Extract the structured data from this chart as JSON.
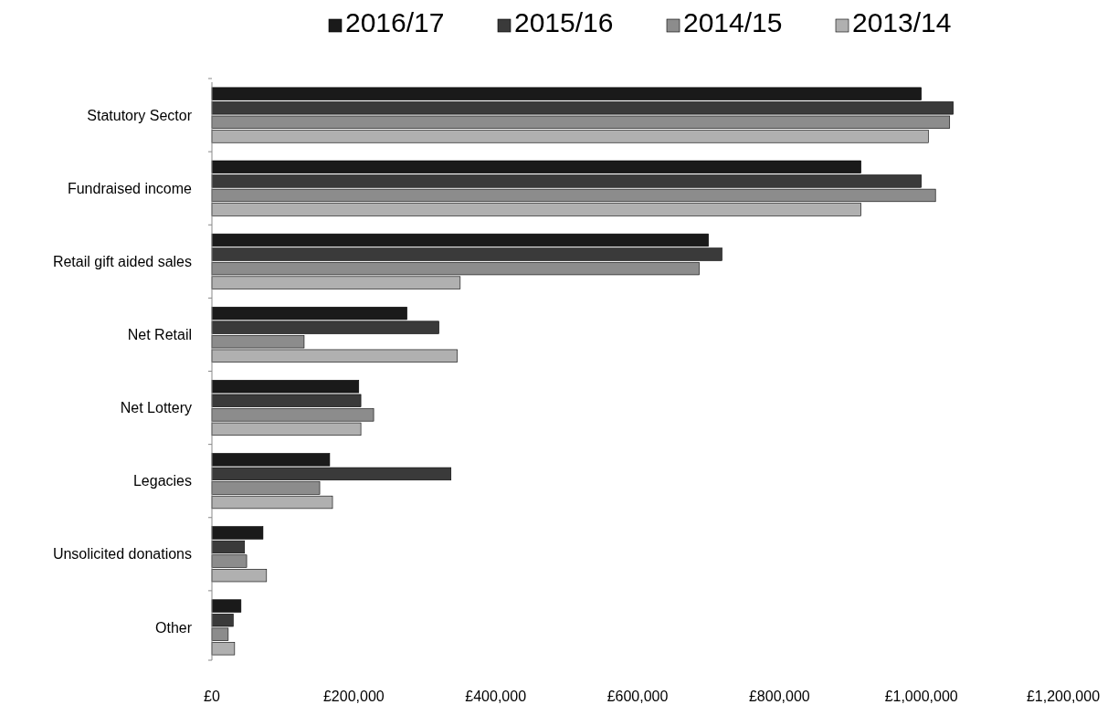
{
  "chart_data": {
    "type": "bar",
    "orientation": "horizontal",
    "categories": [
      "Statutory Sector",
      "Fundraised income",
      "Retail gift aided sales",
      "Net Retail",
      "Net Lottery",
      "Legacies",
      "Unsolicited donations",
      "Other"
    ],
    "series": [
      {
        "name": "2016/17",
        "color": "#1a1a1a",
        "values": [
          1000000,
          915000,
          700000,
          275000,
          207000,
          166000,
          72000,
          41000
        ]
      },
      {
        "name": "2015/16",
        "color": "#3a3a3a",
        "values": [
          1045000,
          1000000,
          719000,
          320000,
          210000,
          337000,
          46000,
          30000
        ]
      },
      {
        "name": "2014/15",
        "color": "#8c8c8c",
        "values": [
          1040000,
          1020000,
          687000,
          130000,
          228000,
          152000,
          49000,
          23000
        ]
      },
      {
        "name": "2013/14",
        "color": "#b0b0b0",
        "values": [
          1010000,
          915000,
          350000,
          346000,
          210000,
          170000,
          77000,
          32000
        ]
      }
    ],
    "xlim": [
      0,
      1200000
    ],
    "xticks": [
      {
        "value": 0,
        "label": "£0"
      },
      {
        "value": 200000,
        "label": "£200,000"
      },
      {
        "value": 400000,
        "label": "£400,000"
      },
      {
        "value": 600000,
        "label": "£600,000"
      },
      {
        "value": 800000,
        "label": "£800,000"
      },
      {
        "value": 1000000,
        "label": "£1,000,000"
      },
      {
        "value": 1200000,
        "label": "£1,200,000"
      }
    ],
    "legend": "top",
    "grid": false
  }
}
